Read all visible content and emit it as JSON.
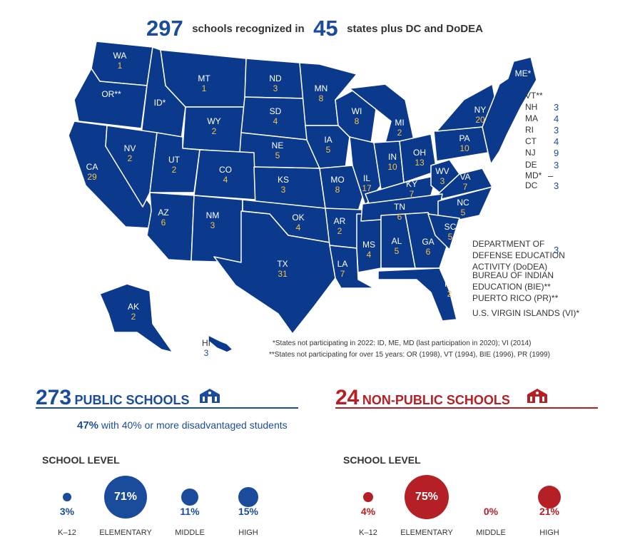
{
  "header": {
    "total_schools": "297",
    "text1": "schools recognized in",
    "total_states": "45",
    "text2": "states plus DC and DoDEA"
  },
  "colors": {
    "map_blue": "#0b3a8c",
    "accent_blue": "#1b4c9c",
    "accent_red": "#b42025",
    "count_gold": "#f3c34a"
  },
  "states": [
    {
      "abbr": "WA",
      "count": "1"
    },
    {
      "abbr": "OR**",
      "count": ""
    },
    {
      "abbr": "ID*",
      "count": ""
    },
    {
      "abbr": "MT",
      "count": "1"
    },
    {
      "abbr": "ND",
      "count": "3"
    },
    {
      "abbr": "MN",
      "count": "8"
    },
    {
      "abbr": "WY",
      "count": "2"
    },
    {
      "abbr": "SD",
      "count": "4"
    },
    {
      "abbr": "WI",
      "count": "8"
    },
    {
      "abbr": "MI",
      "count": "2"
    },
    {
      "abbr": "NY",
      "count": "20"
    },
    {
      "abbr": "ME*",
      "count": ""
    },
    {
      "abbr": "CA",
      "count": "29"
    },
    {
      "abbr": "NV",
      "count": "2"
    },
    {
      "abbr": "UT",
      "count": "2"
    },
    {
      "abbr": "CO",
      "count": "4"
    },
    {
      "abbr": "NE",
      "count": "5"
    },
    {
      "abbr": "IA",
      "count": "5"
    },
    {
      "abbr": "IL",
      "count": "17"
    },
    {
      "abbr": "IN",
      "count": "10"
    },
    {
      "abbr": "OH",
      "count": "13"
    },
    {
      "abbr": "PA",
      "count": "10"
    },
    {
      "abbr": "KS",
      "count": "3"
    },
    {
      "abbr": "MO",
      "count": "8"
    },
    {
      "abbr": "KY",
      "count": "7"
    },
    {
      "abbr": "WV",
      "count": "3"
    },
    {
      "abbr": "VA",
      "count": "7"
    },
    {
      "abbr": "AZ",
      "count": "6"
    },
    {
      "abbr": "NM",
      "count": "3"
    },
    {
      "abbr": "OK",
      "count": "4"
    },
    {
      "abbr": "AR",
      "count": "2"
    },
    {
      "abbr": "TN",
      "count": "6"
    },
    {
      "abbr": "NC",
      "count": "5"
    },
    {
      "abbr": "SC",
      "count": "5"
    },
    {
      "abbr": "MS",
      "count": "4"
    },
    {
      "abbr": "AL",
      "count": "5"
    },
    {
      "abbr": "GA",
      "count": "6"
    },
    {
      "abbr": "TX",
      "count": "31"
    },
    {
      "abbr": "LA",
      "count": "7"
    },
    {
      "abbr": "FL",
      "count": "2"
    },
    {
      "abbr": "AK",
      "count": "2"
    },
    {
      "abbr": "HI",
      "count": "3"
    }
  ],
  "northeast": [
    {
      "abbr": "VT**",
      "count": ""
    },
    {
      "abbr": "NH",
      "count": "3"
    },
    {
      "abbr": "MA",
      "count": "4"
    },
    {
      "abbr": "RI",
      "count": "3"
    },
    {
      "abbr": "CT",
      "count": "4"
    },
    {
      "abbr": "NJ",
      "count": "9"
    },
    {
      "abbr": "DE",
      "count": "3"
    },
    {
      "abbr": "MD*",
      "count": "–"
    },
    {
      "abbr": "DC",
      "count": "3"
    }
  ],
  "other_entities": {
    "dodea_label": "DEPARTMENT OF DEFENSE EDUCATION ACTIVITY (DoDEA)",
    "dodea_count": "3",
    "bie_label": "BUREAU OF INDIAN EDUCATION (BIE)**",
    "pr_label": "PUERTO RICO (PR)**",
    "vi_label": "U.S. VIRGIN ISLANDS (VI)*"
  },
  "footnotes": {
    "note1": "*States not participating in 2022: ID, ME, MD (last participation in 2020); VI (2014)",
    "note2": "**States not participating for over 15 years: OR (1998), VT (1994), BIE (1996), PR (1999)"
  },
  "public": {
    "count": "273",
    "label": "PUBLIC SCHOOLS",
    "disadv_pct": "47%",
    "disadv_text": "with 40% or more disadvantaged students",
    "level_title": "SCHOOL LEVEL",
    "levels": [
      {
        "name": "K–12",
        "pct": "3%",
        "value": 3
      },
      {
        "name": "ELEMENTARY",
        "pct": "71%",
        "value": 71
      },
      {
        "name": "MIDDLE",
        "pct": "11%",
        "value": 11
      },
      {
        "name": "HIGH",
        "pct": "15%",
        "value": 15
      }
    ]
  },
  "nonpublic": {
    "count": "24",
    "label": "NON-PUBLIC SCHOOLS",
    "level_title": "SCHOOL LEVEL",
    "levels": [
      {
        "name": "K–12",
        "pct": "4%",
        "value": 4
      },
      {
        "name": "ELEMENTARY",
        "pct": "75%",
        "value": 75
      },
      {
        "name": "MIDDLE",
        "pct": "0%",
        "value": 0
      },
      {
        "name": "HIGH",
        "pct": "21%",
        "value": 21
      }
    ]
  }
}
